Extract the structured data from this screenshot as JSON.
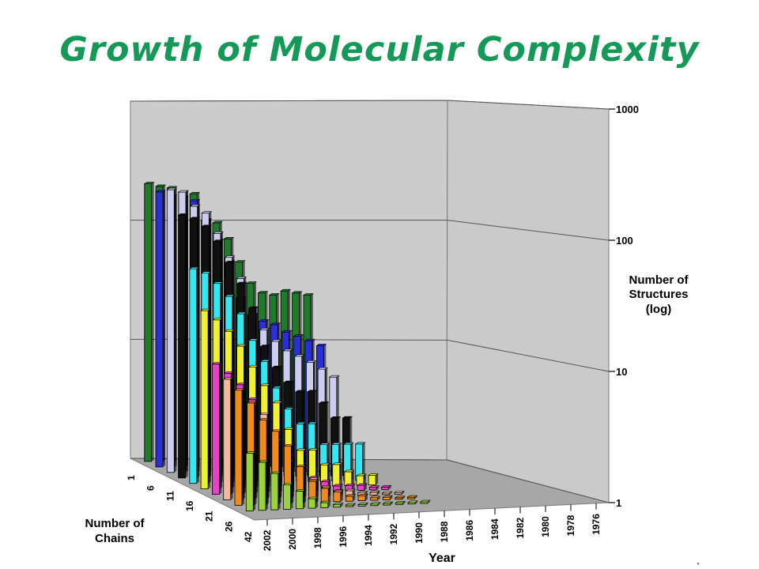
{
  "title": "Growth of Molecular Complexity",
  "footer_mark": "°",
  "chart_data": {
    "type": "bar",
    "subtype": "3d-bar",
    "title": "Growth of Molecular Complexity",
    "zlabel": "Number of Structures\n(log)",
    "xlabel": "Year",
    "ylabel": "Number of\nChains",
    "z_scale": "log",
    "z_ticks": [
      "1",
      "10",
      "100",
      "1000"
    ],
    "zlim": [
      1,
      1000
    ],
    "grid": true,
    "year_ticks": [
      "2002",
      "2000",
      "1998",
      "1996",
      "1994",
      "1992",
      "1990",
      "1988",
      "1986",
      "1984",
      "1982",
      "1980",
      "1978",
      "1976"
    ],
    "chain_ticks": [
      "1",
      "6",
      "11",
      "16",
      "21",
      "26",
      "42"
    ],
    "series": [
      {
        "chains": 1,
        "color": "#1f7a2a",
        "points": [
          [
            2002,
            200
          ],
          [
            2001,
            190
          ],
          [
            2000,
            185
          ],
          [
            1999,
            170
          ],
          [
            1998,
            165
          ],
          [
            1997,
            100
          ],
          [
            1996,
            95
          ],
          [
            1995,
            70
          ],
          [
            1994,
            45
          ],
          [
            1993,
            30
          ],
          [
            1992,
            25
          ],
          [
            1991,
            24
          ],
          [
            1990,
            26
          ],
          [
            1989,
            25
          ],
          [
            1988,
            24
          ]
        ]
      },
      {
        "chains": 1,
        "color": "#2a2fd6",
        "points": [
          [
            2002,
            190
          ],
          [
            2001,
            175
          ],
          [
            2000,
            170
          ],
          [
            1999,
            160
          ],
          [
            1998,
            110
          ],
          [
            1997,
            75
          ],
          [
            1996,
            50
          ],
          [
            1995,
            25
          ],
          [
            1994,
            18
          ],
          [
            1993,
            16
          ],
          [
            1992,
            15
          ],
          [
            1991,
            13
          ],
          [
            1990,
            12
          ],
          [
            1989,
            11
          ],
          [
            1988,
            10
          ]
        ]
      },
      {
        "chains": 2,
        "color": "#ccccee",
        "points": [
          [
            2002,
            220
          ],
          [
            2001,
            210
          ],
          [
            2000,
            160
          ],
          [
            1999,
            140
          ],
          [
            1998,
            95
          ],
          [
            1997,
            60
          ],
          [
            1996,
            40
          ],
          [
            1995,
            20
          ],
          [
            1994,
            15
          ],
          [
            1993,
            12
          ],
          [
            1992,
            10
          ],
          [
            1991,
            9
          ],
          [
            1990,
            8
          ],
          [
            1989,
            7
          ],
          [
            1988,
            6
          ]
        ]
      },
      {
        "chains": 2,
        "color": "#111111",
        "points": [
          [
            2002,
            150
          ],
          [
            2001,
            140
          ],
          [
            2000,
            120
          ],
          [
            1999,
            90
          ],
          [
            1998,
            60
          ],
          [
            1997,
            40
          ],
          [
            1996,
            25
          ],
          [
            1995,
            12
          ],
          [
            1994,
            8
          ],
          [
            1993,
            6
          ],
          [
            1992,
            5
          ],
          [
            1991,
            5
          ],
          [
            1990,
            4
          ],
          [
            1989,
            3
          ],
          [
            1988,
            3
          ]
        ]
      },
      {
        "chains": 4,
        "color": "#33e8f0",
        "points": [
          [
            2002,
            60
          ],
          [
            2001,
            55
          ],
          [
            2000,
            45
          ],
          [
            1999,
            35
          ],
          [
            1998,
            25
          ],
          [
            1997,
            15
          ],
          [
            1996,
            10
          ],
          [
            1995,
            6
          ],
          [
            1994,
            4
          ],
          [
            1993,
            3
          ],
          [
            1992,
            3
          ],
          [
            1991,
            2
          ],
          [
            1990,
            2
          ],
          [
            1989,
            2
          ],
          [
            1988,
            2
          ]
        ]
      },
      {
        "chains": 6,
        "color": "#f0f033",
        "points": [
          [
            2002,
            30
          ],
          [
            2001,
            25
          ],
          [
            2000,
            20
          ],
          [
            1999,
            15
          ],
          [
            1998,
            10
          ],
          [
            1997,
            7
          ],
          [
            1996,
            5
          ],
          [
            1995,
            3
          ],
          [
            1994,
            2
          ],
          [
            1993,
            2
          ],
          [
            1992,
            1.5
          ],
          [
            1991,
            1.5
          ],
          [
            1990,
            1.3
          ],
          [
            1989,
            1.2
          ],
          [
            1988,
            1.2
          ]
        ]
      },
      {
        "chains": 8,
        "color": "#e840c8",
        "points": [
          [
            2002,
            12
          ],
          [
            2001,
            10
          ],
          [
            2000,
            8
          ],
          [
            1999,
            6
          ],
          [
            1998,
            4
          ],
          [
            1997,
            3
          ],
          [
            1996,
            2
          ],
          [
            1995,
            1.5
          ],
          [
            1994,
            1.3
          ],
          [
            1993,
            1.2
          ],
          [
            1992,
            1.1
          ],
          [
            1991,
            1.1
          ],
          [
            1990,
            1.1
          ],
          [
            1989,
            1.05
          ],
          [
            1988,
            1.05
          ]
        ]
      },
      {
        "chains": 12,
        "color": "#f5b89a",
        "points": [
          [
            2002,
            10
          ],
          [
            2001,
            8
          ],
          [
            2000,
            6
          ],
          [
            1999,
            5
          ],
          [
            1998,
            3
          ],
          [
            1997,
            2
          ],
          [
            1996,
            1.6
          ],
          [
            1995,
            1.4
          ],
          [
            1994,
            1.2
          ],
          [
            1993,
            1.1
          ],
          [
            1992,
            1.1
          ],
          [
            1991,
            1.05
          ],
          [
            1990,
            1.05
          ],
          [
            1989,
            1.03
          ],
          [
            1988,
            1.03
          ]
        ]
      },
      {
        "chains": 24,
        "color": "#f08a1a",
        "points": [
          [
            2002,
            9
          ],
          [
            2001,
            7
          ],
          [
            2000,
            5
          ],
          [
            1999,
            4
          ],
          [
            1998,
            3
          ],
          [
            1997,
            2
          ],
          [
            1996,
            1.5
          ],
          [
            1995,
            1.3
          ],
          [
            1994,
            1.2
          ],
          [
            1993,
            1.1
          ],
          [
            1992,
            1.1
          ],
          [
            1991,
            1.05
          ],
          [
            1990,
            1.05
          ],
          [
            1989,
            1.03
          ],
          [
            1988,
            1.03
          ]
        ]
      },
      {
        "chains": 42,
        "color": "#9ad23a",
        "points": [
          [
            2002,
            3
          ],
          [
            2001,
            2.5
          ],
          [
            2000,
            2
          ],
          [
            1999,
            1.6
          ],
          [
            1998,
            1.4
          ],
          [
            1997,
            1.2
          ],
          [
            1996,
            1.1
          ],
          [
            1995,
            1.05
          ],
          [
            1994,
            1.03
          ],
          [
            1993,
            1.02
          ],
          [
            1992,
            1.02
          ],
          [
            1991,
            1.01
          ],
          [
            1990,
            1.01
          ],
          [
            1989,
            1.01
          ],
          [
            1988,
            1.01
          ]
        ]
      }
    ],
    "colors": {
      "back_wall": "#cccccc",
      "side_wall": "#cacaca",
      "floor": "#a7a7a7",
      "title": "#159958",
      "edge": "#7a7a7a"
    }
  }
}
